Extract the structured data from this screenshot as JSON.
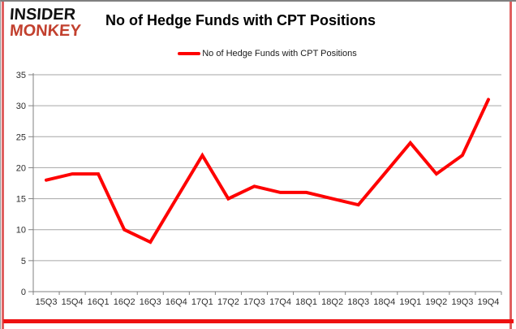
{
  "logo": {
    "line1": "INSIDER",
    "line2": "MONKEY",
    "line2_color": "#c2402e"
  },
  "title": "No of Hedge Funds with CPT Positions",
  "legend": {
    "label": "No of Hedge Funds with CPT Positions",
    "color": "#fe0101"
  },
  "frame": {
    "accent_color": "#e06060",
    "bottom_bar_color": "#ee1111",
    "border_color": "#7f7f7f"
  },
  "chart_data": {
    "type": "line",
    "title": "No of Hedge Funds with CPT Positions",
    "categories": [
      "15Q3",
      "15Q4",
      "16Q1",
      "16Q2",
      "16Q3",
      "16Q4",
      "17Q1",
      "17Q2",
      "17Q3",
      "17Q4",
      "18Q1",
      "18Q2",
      "18Q3",
      "18Q4",
      "19Q1",
      "19Q2",
      "19Q3",
      "19Q4"
    ],
    "series": [
      {
        "name": "No of Hedge Funds with CPT Positions",
        "color": "#fe0101",
        "values": [
          18,
          19,
          19,
          10,
          8,
          15,
          22,
          15,
          17,
          16,
          16,
          15,
          14,
          19,
          24,
          19,
          22,
          31
        ]
      }
    ],
    "xlabel": "",
    "ylabel": "",
    "ylim": [
      0,
      35
    ],
    "yticks": [
      0,
      5,
      10,
      15,
      20,
      25,
      30,
      35
    ],
    "grid": true,
    "grid_color": "#a6a6a6",
    "axis_color": "#808080",
    "legend_position": "top-center"
  }
}
